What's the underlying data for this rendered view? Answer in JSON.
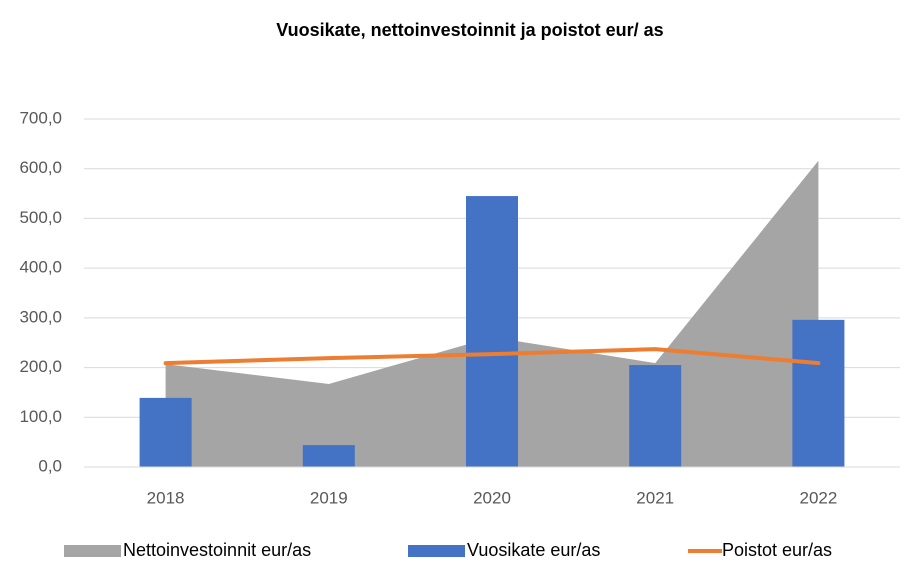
{
  "chart_data": {
    "type": "combo",
    "title": "Vuosikate, nettoinvestoinnit ja poistot eur/ as",
    "categories": [
      "2018",
      "2019",
      "2020",
      "2021",
      "2022"
    ],
    "series": [
      {
        "name": "Nettoinvestoinnit eur/as",
        "type": "area",
        "color": "#a5a5a5",
        "values": [
          207,
          167,
          261,
          209,
          616
        ]
      },
      {
        "name": "Vuosikate eur/as",
        "type": "bar",
        "color": "#4472c4",
        "values": [
          139,
          44,
          545,
          205,
          296
        ]
      },
      {
        "name": "Poistot eur/as",
        "type": "line",
        "color": "#ed7d31",
        "values": [
          209,
          219,
          227,
          237,
          209
        ]
      }
    ],
    "ylim": [
      0,
      700
    ],
    "yticks": [
      {
        "value": 0,
        "label": "0,0"
      },
      {
        "value": 100,
        "label": "100,0"
      },
      {
        "value": 200,
        "label": "200,0"
      },
      {
        "value": 300,
        "label": "300,0"
      },
      {
        "value": 400,
        "label": "400,0"
      },
      {
        "value": 500,
        "label": "500,0"
      },
      {
        "value": 600,
        "label": "600,0"
      },
      {
        "value": 700,
        "label": "700,0"
      }
    ],
    "grid": true,
    "legend": "bottom"
  }
}
